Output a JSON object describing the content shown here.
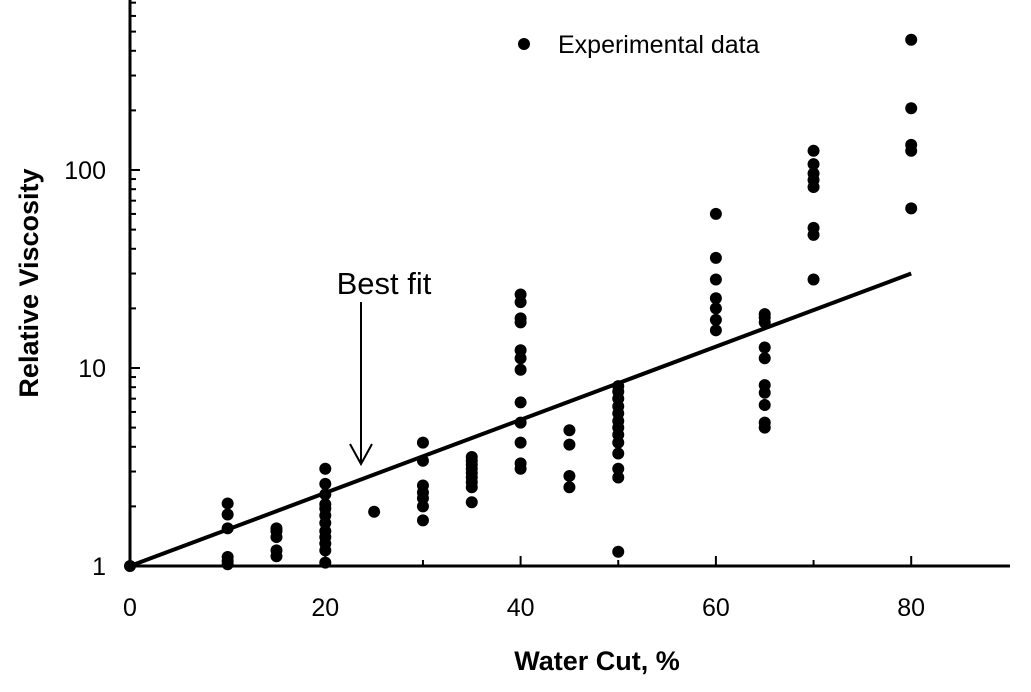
{
  "chart_data": {
    "type": "scatter",
    "title": "",
    "xlabel": "Water Cut, %",
    "ylabel": "Relative Viscosity",
    "xlim": [
      0,
      90
    ],
    "ylim": [
      1,
      1000
    ],
    "yscale": "log",
    "x_ticks": [
      "0",
      "20",
      "40",
      "60",
      "80"
    ],
    "y_ticks": [
      "1",
      "10",
      "100"
    ],
    "grid": false,
    "legend": {
      "position": "top-right",
      "entries": [
        "Experimental data"
      ]
    },
    "annotations": [
      {
        "text": "Best fit",
        "points_to": {
          "x": 23.5,
          "y": 3.0
        }
      }
    ],
    "series": [
      {
        "name": "Experimental data",
        "marker": "circle",
        "points": [
          [
            0,
            1.0
          ],
          [
            10,
            1.02
          ],
          [
            10,
            1.06
          ],
          [
            10,
            1.11
          ],
          [
            10,
            1.55
          ],
          [
            10,
            1.82
          ],
          [
            10,
            2.07
          ],
          [
            15,
            1.12
          ],
          [
            15,
            1.2
          ],
          [
            15,
            1.4
          ],
          [
            15,
            1.5
          ],
          [
            15,
            1.55
          ],
          [
            20,
            1.04
          ],
          [
            20,
            1.2
          ],
          [
            20,
            1.3
          ],
          [
            20,
            1.4
          ],
          [
            20,
            1.5
          ],
          [
            20,
            1.65
          ],
          [
            20,
            1.8
          ],
          [
            20,
            1.95
          ],
          [
            20,
            2.05
          ],
          [
            20,
            2.3
          ],
          [
            20,
            2.6
          ],
          [
            20,
            3.1
          ],
          [
            25,
            1.88
          ],
          [
            30,
            1.7
          ],
          [
            30,
            2.0
          ],
          [
            30,
            2.2
          ],
          [
            30,
            2.35
          ],
          [
            30,
            2.55
          ],
          [
            30,
            3.4
          ],
          [
            30,
            4.2
          ],
          [
            35,
            2.1
          ],
          [
            35,
            2.5
          ],
          [
            35,
            2.65
          ],
          [
            35,
            2.8
          ],
          [
            35,
            2.95
          ],
          [
            35,
            3.1
          ],
          [
            35,
            3.25
          ],
          [
            35,
            3.4
          ],
          [
            35,
            3.55
          ],
          [
            40,
            3.1
          ],
          [
            40,
            3.3
          ],
          [
            40,
            4.2
          ],
          [
            40,
            5.3
          ],
          [
            40,
            6.7
          ],
          [
            40,
            9.8
          ],
          [
            40,
            11.2
          ],
          [
            40,
            12.3
          ],
          [
            40,
            17.0
          ],
          [
            40,
            17.8
          ],
          [
            40,
            21.5
          ],
          [
            40,
            23.5
          ],
          [
            45,
            2.5
          ],
          [
            45,
            2.85
          ],
          [
            45,
            4.1
          ],
          [
            45,
            4.85
          ],
          [
            50,
            1.18
          ],
          [
            50,
            2.8
          ],
          [
            50,
            3.1
          ],
          [
            50,
            3.7
          ],
          [
            50,
            4.2
          ],
          [
            50,
            4.6
          ],
          [
            50,
            5.0
          ],
          [
            50,
            5.4
          ],
          [
            50,
            5.9
          ],
          [
            50,
            6.4
          ],
          [
            50,
            7.0
          ],
          [
            50,
            7.6
          ],
          [
            50,
            8.1
          ],
          [
            60,
            15.5
          ],
          [
            60,
            17.5
          ],
          [
            60,
            20.0
          ],
          [
            60,
            22.5
          ],
          [
            60,
            28.0
          ],
          [
            60,
            36.0
          ],
          [
            60,
            60.0
          ],
          [
            65,
            5.0
          ],
          [
            65,
            5.3
          ],
          [
            65,
            6.5
          ],
          [
            65,
            7.5
          ],
          [
            65,
            8.2
          ],
          [
            65,
            11.2
          ],
          [
            65,
            12.7
          ],
          [
            65,
            17.0
          ],
          [
            65,
            18.0
          ],
          [
            65,
            18.7
          ],
          [
            70,
            28.0
          ],
          [
            70,
            47.0
          ],
          [
            70,
            51.0
          ],
          [
            70,
            82.0
          ],
          [
            70,
            89.0
          ],
          [
            70,
            96.0
          ],
          [
            70,
            107.0
          ],
          [
            70,
            125.0
          ],
          [
            80,
            64.0
          ],
          [
            80,
            125.0
          ],
          [
            80,
            134.0
          ],
          [
            80,
            205.0
          ],
          [
            80,
            455.0
          ]
        ]
      },
      {
        "name": "Best fit",
        "type": "line",
        "points": [
          [
            0,
            1.0
          ],
          [
            80,
            30.0
          ]
        ]
      }
    ]
  }
}
